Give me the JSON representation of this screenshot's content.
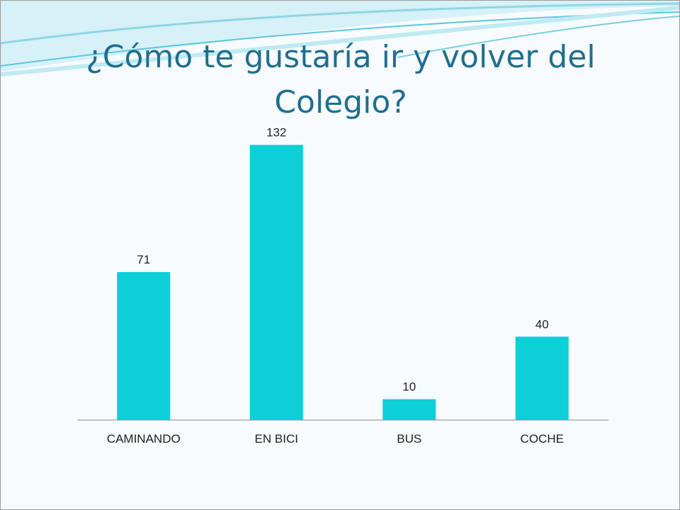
{
  "slide": {
    "title": "¿Cómo te gustaría ir y volver del Colegio?",
    "theme_colors": {
      "title": "#1f6f8f",
      "bar": "#0ccfd8",
      "swoosh_light": "#bfeaf3",
      "swoosh_mid": "#5cc6dc"
    }
  },
  "chart_data": {
    "type": "bar",
    "title": "",
    "xlabel": "",
    "ylabel": "",
    "categories": [
      "CAMINANDO",
      "EN BICI",
      "BUS",
      "COCHE"
    ],
    "values": [
      71,
      132,
      10,
      40
    ],
    "data_labels": [
      "71",
      "132",
      "10",
      "40"
    ],
    "ylim": [
      0,
      140
    ],
    "grid": false,
    "legend": "none",
    "bar_color": "#0ccfd8"
  }
}
